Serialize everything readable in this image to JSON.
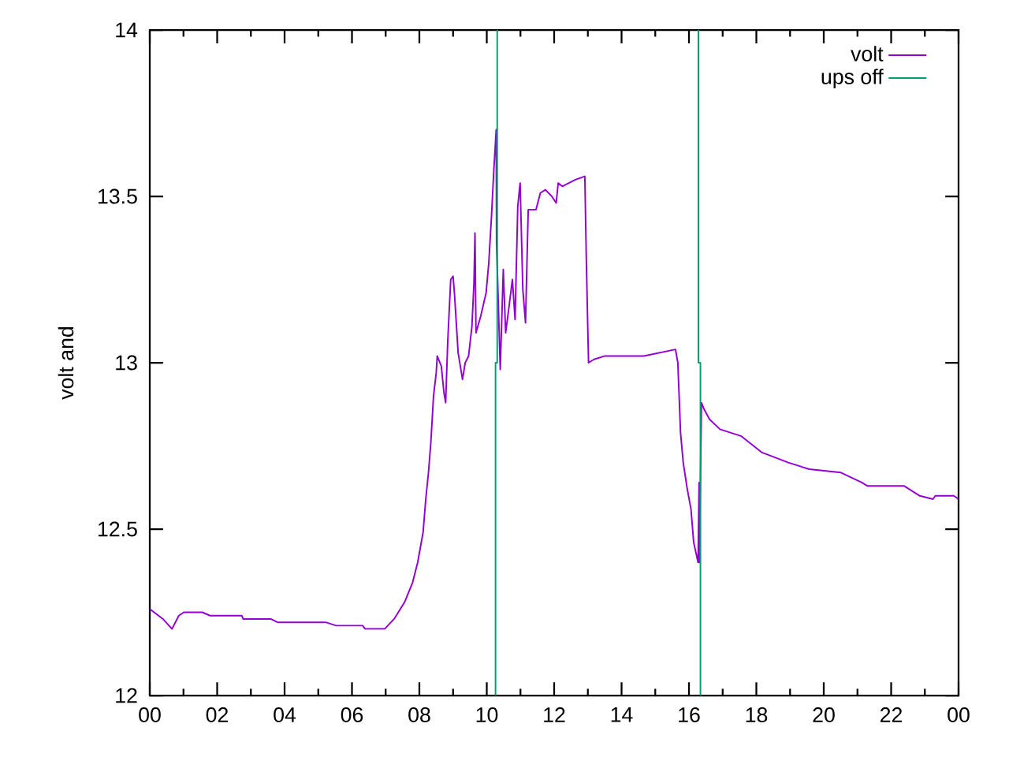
{
  "chart_data": {
    "type": "line",
    "ylabel": "volt and",
    "xlim": [
      0,
      24
    ],
    "ylim": [
      12,
      14
    ],
    "xticks": [
      {
        "value": 0,
        "label": "00"
      },
      {
        "value": 2,
        "label": "02"
      },
      {
        "value": 4,
        "label": "04"
      },
      {
        "value": 6,
        "label": "06"
      },
      {
        "value": 8,
        "label": "08"
      },
      {
        "value": 10,
        "label": "10"
      },
      {
        "value": 12,
        "label": "12"
      },
      {
        "value": 14,
        "label": "14"
      },
      {
        "value": 16,
        "label": "16"
      },
      {
        "value": 18,
        "label": "18"
      },
      {
        "value": 20,
        "label": "20"
      },
      {
        "value": 22,
        "label": "22"
      },
      {
        "value": 24,
        "label": "00"
      }
    ],
    "yticks": [
      12,
      {
        "value": 12.5,
        "label": "12.5"
      },
      13,
      {
        "value": 13.5,
        "label": "13.5"
      },
      14
    ],
    "legend": "top right",
    "grid": false,
    "series": [
      {
        "name": "volt",
        "color": "#9400d3",
        "x": [
          0,
          0.39,
          0.66,
          0.86,
          1.01,
          1.56,
          1.79,
          2.73,
          2.77,
          3.59,
          3.79,
          5.22,
          5.53,
          6.32,
          6.39,
          6.97,
          7.25,
          7.56,
          7.8,
          7.95,
          8.11,
          8.19,
          8.27,
          8.34,
          8.42,
          8.5,
          8.53,
          8.65,
          8.73,
          8.78,
          8.84,
          8.93,
          9.0,
          9.04,
          9.15,
          9.28,
          9.36,
          9.46,
          9.56,
          9.62,
          9.65,
          9.68,
          9.82,
          9.98,
          10.06,
          10.14,
          10.21,
          10.28,
          10.29,
          10.4,
          10.49,
          10.56,
          10.65,
          10.76,
          10.84,
          10.92,
          10.99,
          11.07,
          11.15,
          11.23,
          11.46,
          11.59,
          11.74,
          11.93,
          12.06,
          12.12,
          12.24,
          12.63,
          12.91,
          12.96,
          13.02,
          13.18,
          13.49,
          14.66,
          15.6,
          15.67,
          15.75,
          15.83,
          15.95,
          16.06,
          16.14,
          16.27,
          16.3,
          16.31,
          16.37,
          16.45,
          16.61,
          16.92,
          17.54,
          18.17,
          18.95,
          19.57,
          20.51,
          21.13,
          21.29,
          22.38,
          22.85,
          23.24,
          23.31,
          23.86,
          24.0
        ],
        "values": [
          12.26,
          12.23,
          12.2,
          12.24,
          12.25,
          12.25,
          12.24,
          12.24,
          12.23,
          12.23,
          12.22,
          12.22,
          12.21,
          12.21,
          12.2,
          12.2,
          12.23,
          12.28,
          12.34,
          12.4,
          12.49,
          12.59,
          12.67,
          12.76,
          12.9,
          12.97,
          13.02,
          12.99,
          12.91,
          12.88,
          13.06,
          13.25,
          13.26,
          13.21,
          13.03,
          12.95,
          13.0,
          13.02,
          13.11,
          13.24,
          13.39,
          13.09,
          13.14,
          13.21,
          13.3,
          13.44,
          13.58,
          13.7,
          13.36,
          12.98,
          13.28,
          13.09,
          13.16,
          13.25,
          13.13,
          13.47,
          13.54,
          13.22,
          13.12,
          13.46,
          13.46,
          13.51,
          13.52,
          13.5,
          13.48,
          13.54,
          13.53,
          13.55,
          13.56,
          13.28,
          13.0,
          13.01,
          13.02,
          13.02,
          13.04,
          13.0,
          12.79,
          12.7,
          12.62,
          12.56,
          12.46,
          12.4,
          12.64,
          12.4,
          12.88,
          12.86,
          12.83,
          12.8,
          12.78,
          12.73,
          12.7,
          12.68,
          12.67,
          12.64,
          12.63,
          12.63,
          12.6,
          12.59,
          12.6,
          12.6,
          12.59
        ]
      },
      {
        "name": "ups off",
        "color": "#009e73",
        "x": [
          10.26,
          10.26,
          10.31,
          10.31,
          13.3,
          16.28,
          16.28,
          16.34,
          16.34
        ],
        "values": [
          12,
          13,
          13,
          14,
          null,
          14,
          13,
          13,
          12
        ]
      }
    ]
  }
}
